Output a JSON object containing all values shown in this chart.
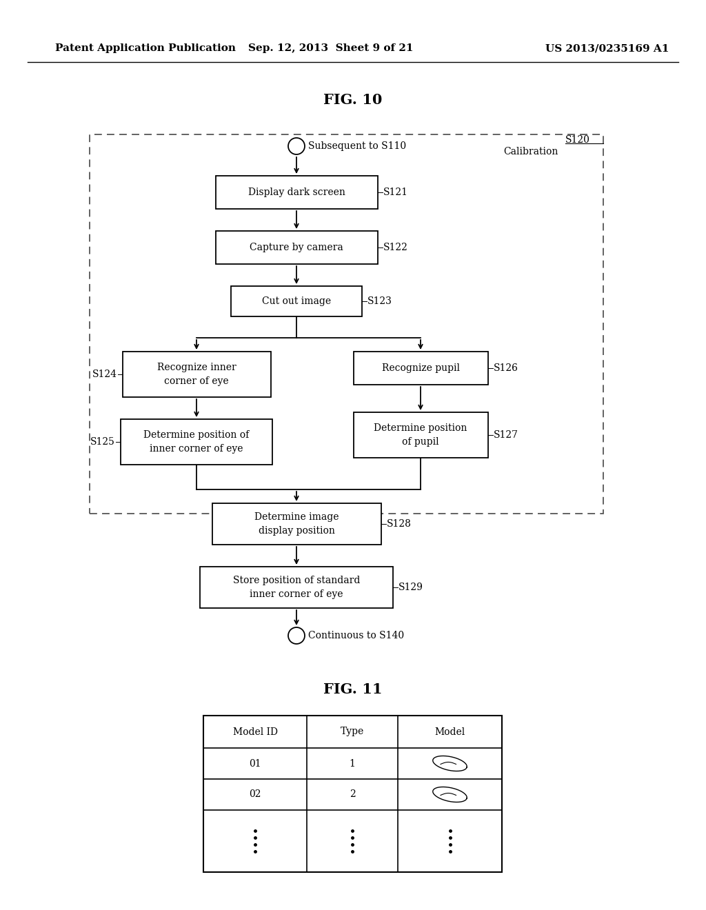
{
  "bg_color": "#ffffff",
  "header_left": "Patent Application Publication",
  "header_center": "Sep. 12, 2013  Sheet 9 of 21",
  "header_right": "US 2013/0235169 A1",
  "fig10_title": "FIG. 10",
  "fig11_title": "FIG. 11",
  "box_face": "#ffffff",
  "box_edge": "#000000",
  "arrow_color": "#000000"
}
